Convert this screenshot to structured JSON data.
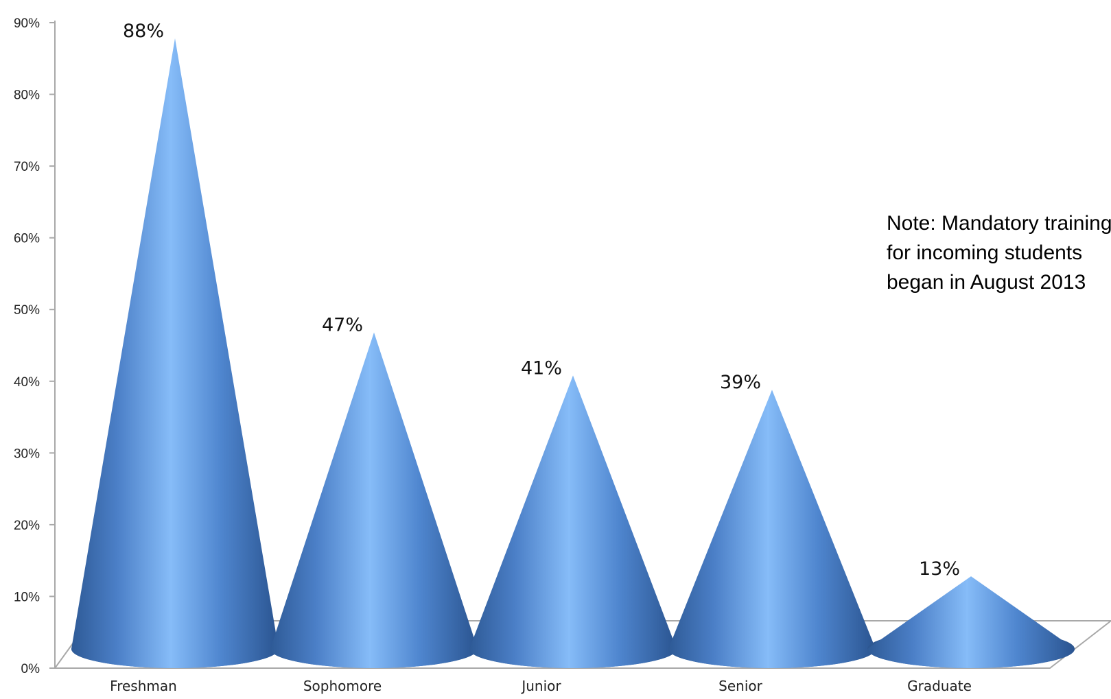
{
  "chart_data": {
    "type": "bar",
    "bar_shape": "cone-3d",
    "categories": [
      "Freshman",
      "Sophomore",
      "Junior",
      "Senior",
      "Graduate"
    ],
    "values": [
      88,
      47,
      41,
      39,
      13
    ],
    "data_labels": [
      "88%",
      "47%",
      "41%",
      "39%",
      "13%"
    ],
    "ylim": [
      0,
      90
    ],
    "yticks": [
      0,
      10,
      20,
      30,
      40,
      50,
      60,
      70,
      80,
      90
    ],
    "ytick_labels": [
      "0%",
      "10%",
      "20%",
      "30%",
      "40%",
      "50%",
      "60%",
      "70%",
      "80%",
      "90%"
    ],
    "grid": false,
    "legend": "none",
    "bar_color": "#4a7ec6",
    "annotation": [
      "Note: Mandatory training",
      "for incoming students",
      "began in August 2013"
    ]
  }
}
